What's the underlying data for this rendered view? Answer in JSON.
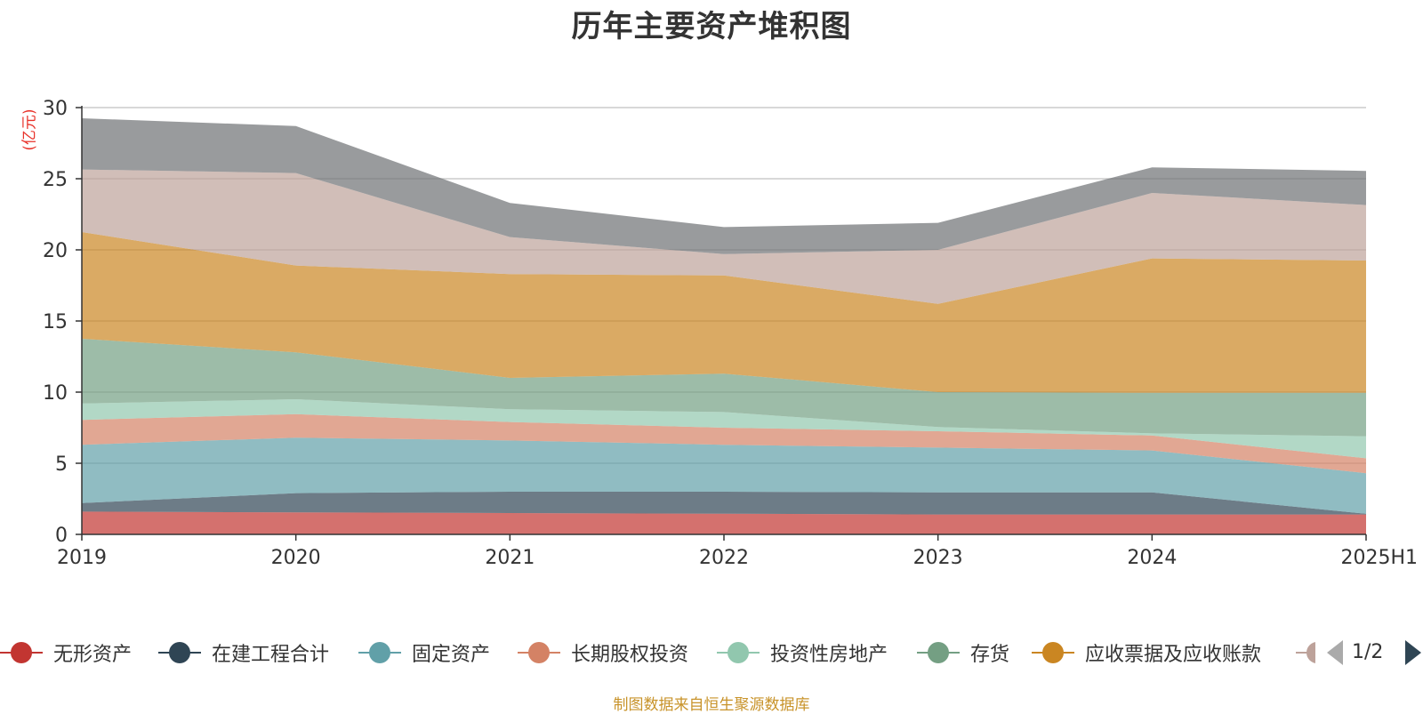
{
  "chart_data": {
    "type": "area",
    "stacked": true,
    "title": "历年主要资产堆积图",
    "unit_label": "(亿元)",
    "categories": [
      "2019",
      "2020",
      "2021",
      "2022",
      "2023",
      "2024",
      "2025H1"
    ],
    "y_ticks": [
      "0",
      "5",
      "10",
      "15",
      "20",
      "25",
      "30"
    ],
    "ylim": [
      0,
      30
    ],
    "grid": true,
    "legend_position": "bottom",
    "series": [
      {
        "name": "无形资产",
        "color": "#c23531",
        "values": [
          1.6,
          1.55,
          1.5,
          1.45,
          1.4,
          1.4,
          1.4
        ]
      },
      {
        "name": "在建工程合计",
        "color": "#2f4554",
        "values": [
          0.6,
          1.35,
          1.5,
          1.55,
          1.55,
          1.55,
          0.05
        ]
      },
      {
        "name": "固定资产",
        "color": "#61a0a8",
        "values": [
          4.1,
          3.9,
          3.6,
          3.3,
          3.15,
          2.95,
          2.85
        ]
      },
      {
        "name": "长期股权投资",
        "color": "#d48265",
        "values": [
          1.75,
          1.65,
          1.3,
          1.2,
          1.15,
          1.05,
          1.05
        ]
      },
      {
        "name": "投资性房地产",
        "color": "#91c7ae",
        "values": [
          1.15,
          1.05,
          0.9,
          1.1,
          0.3,
          0.15,
          1.55
        ]
      },
      {
        "name": "存货",
        "color": "#749f83",
        "values": [
          4.55,
          3.3,
          2.2,
          2.7,
          2.45,
          2.85,
          3.05
        ]
      },
      {
        "name": "应收票据及应收账款",
        "color": "#ca8622",
        "values": [
          7.5,
          6.1,
          7.3,
          6.9,
          6.2,
          9.45,
          9.3
        ]
      },
      {
        "name": "",
        "color": "#bda29a",
        "values": [
          4.4,
          6.5,
          2.6,
          1.5,
          3.8,
          4.6,
          3.9
        ]
      },
      {
        "name": "",
        "color": "#6e7074",
        "values": [
          3.6,
          3.3,
          2.4,
          1.9,
          1.9,
          1.8,
          2.4
        ]
      }
    ]
  },
  "legend": {
    "items": [
      {
        "label": "无形资产",
        "color": "#c23531"
      },
      {
        "label": "在建工程合计",
        "color": "#2f4554"
      },
      {
        "label": "固定资产",
        "color": "#61a0a8"
      },
      {
        "label": "长期股权投资",
        "color": "#d48265"
      },
      {
        "label": "投资性房地产",
        "color": "#91c7ae"
      },
      {
        "label": "存货",
        "color": "#749f83"
      },
      {
        "label": "应收票据及应收账款",
        "color": "#ca8622"
      }
    ],
    "partial_color": "#bda29a",
    "page_indicator": "1/2"
  },
  "source_text": "制图数据来自恒生聚源数据库"
}
